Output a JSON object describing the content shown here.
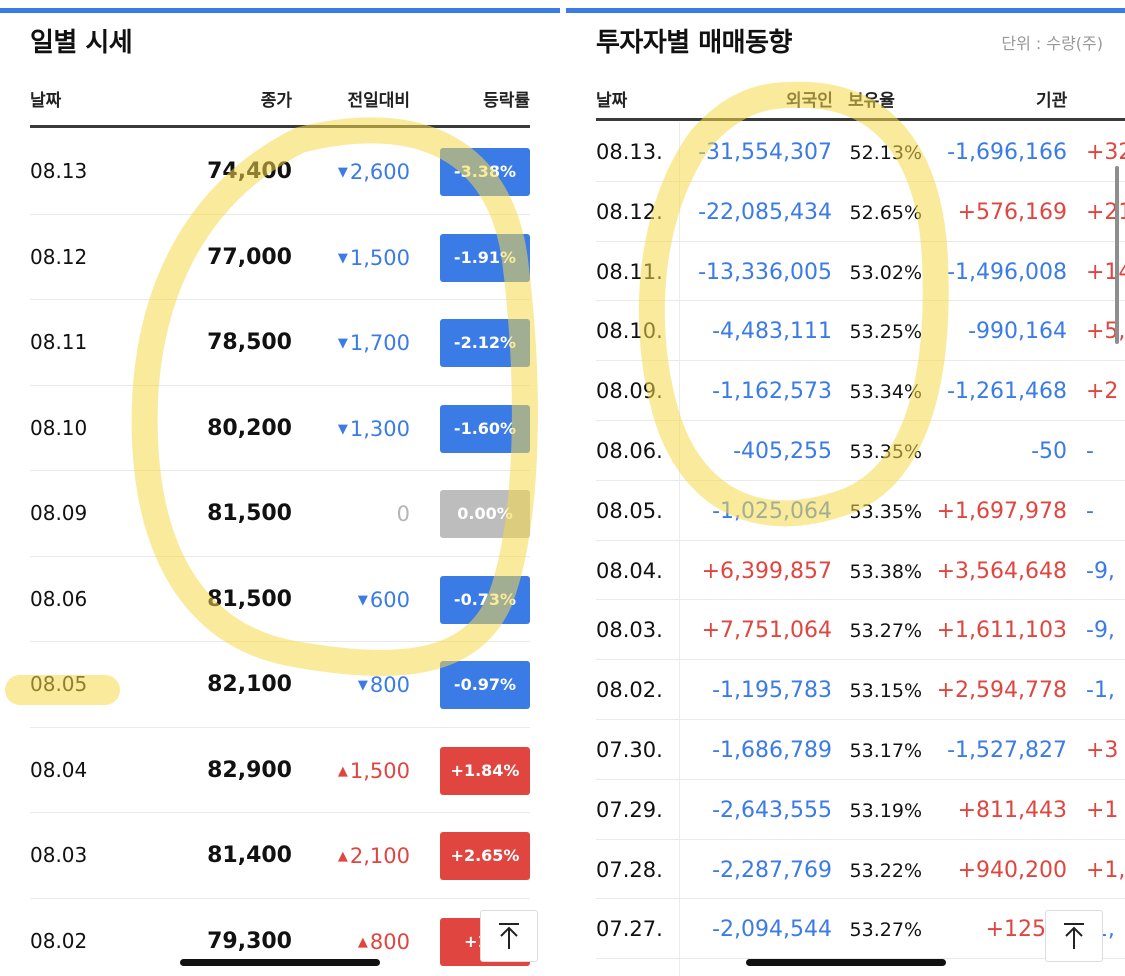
{
  "left": {
    "title": "일별 시세",
    "headers": {
      "date": "날짜",
      "close": "종가",
      "change": "전일대비",
      "rate": "등락률"
    },
    "rows": [
      {
        "date": "08.13",
        "close": "74,400",
        "change": "2,600",
        "dir": "down",
        "rate": "-3.38%"
      },
      {
        "date": "08.12",
        "close": "77,000",
        "change": "1,500",
        "dir": "down",
        "rate": "-1.91%"
      },
      {
        "date": "08.11",
        "close": "78,500",
        "change": "1,700",
        "dir": "down",
        "rate": "-2.12%"
      },
      {
        "date": "08.10",
        "close": "80,200",
        "change": "1,300",
        "dir": "down",
        "rate": "-1.60%"
      },
      {
        "date": "08.09",
        "close": "81,500",
        "change": "0",
        "dir": "flat",
        "rate": "0.00%"
      },
      {
        "date": "08.06",
        "close": "81,500",
        "change": "600",
        "dir": "down",
        "rate": "-0.73%"
      },
      {
        "date": "08.05",
        "close": "82,100",
        "change": "800",
        "dir": "down",
        "rate": "-0.97%"
      },
      {
        "date": "08.04",
        "close": "82,900",
        "change": "1,500",
        "dir": "up",
        "rate": "+1.84%"
      },
      {
        "date": "08.03",
        "close": "81,400",
        "change": "2,100",
        "dir": "up",
        "rate": "+2.65%"
      },
      {
        "date": "08.02",
        "close": "79,300",
        "change": "800",
        "dir": "up",
        "rate": "+1.0"
      }
    ]
  },
  "right": {
    "title": "투자자별 매매동향",
    "unit": "단위 : 수량(주)",
    "headers": {
      "date": "날짜",
      "foreign": "외국인",
      "ratio": "보유율",
      "institution": "기관"
    },
    "rows": [
      {
        "date": "08.13.",
        "foreign": "-31,554,307",
        "fdir": "down",
        "ratio": "52.13%",
        "inst": "-1,696,166",
        "idir": "down",
        "extra": "+32",
        "edir": "up"
      },
      {
        "date": "08.12.",
        "foreign": "-22,085,434",
        "fdir": "down",
        "ratio": "52.65%",
        "inst": "+576,169",
        "idir": "up",
        "extra": "+21,",
        "edir": "up"
      },
      {
        "date": "08.11.",
        "foreign": "-13,336,005",
        "fdir": "down",
        "ratio": "53.02%",
        "inst": "-1,496,008",
        "idir": "down",
        "extra": "+14",
        "edir": "up"
      },
      {
        "date": "08.10.",
        "foreign": "-4,483,111",
        "fdir": "down",
        "ratio": "53.25%",
        "inst": "-990,164",
        "idir": "down",
        "extra": "+5,",
        "edir": "up"
      },
      {
        "date": "08.09.",
        "foreign": "-1,162,573",
        "fdir": "down",
        "ratio": "53.34%",
        "inst": "-1,261,468",
        "idir": "down",
        "extra": "+2",
        "edir": "up"
      },
      {
        "date": "08.06.",
        "foreign": "-405,255",
        "fdir": "down",
        "ratio": "53.35%",
        "inst": "-50",
        "idir": "down",
        "extra": "-",
        "edir": "down"
      },
      {
        "date": "08.05.",
        "foreign": "-1,025,064",
        "fdir": "down",
        "ratio": "53.35%",
        "inst": "+1,697,978",
        "idir": "up",
        "extra": "-",
        "edir": "down"
      },
      {
        "date": "08.04.",
        "foreign": "+6,399,857",
        "fdir": "up",
        "ratio": "53.38%",
        "inst": "+3,564,648",
        "idir": "up",
        "extra": "-9,",
        "edir": "down"
      },
      {
        "date": "08.03.",
        "foreign": "+7,751,064",
        "fdir": "up",
        "ratio": "53.27%",
        "inst": "+1,611,103",
        "idir": "up",
        "extra": "-9,",
        "edir": "down"
      },
      {
        "date": "08.02.",
        "foreign": "-1,195,783",
        "fdir": "down",
        "ratio": "53.15%",
        "inst": "+2,594,778",
        "idir": "up",
        "extra": "-1,",
        "edir": "down"
      },
      {
        "date": "07.30.",
        "foreign": "-1,686,789",
        "fdir": "down",
        "ratio": "53.17%",
        "inst": "-1,527,827",
        "idir": "down",
        "extra": "+3",
        "edir": "up"
      },
      {
        "date": "07.29.",
        "foreign": "-2,643,555",
        "fdir": "down",
        "ratio": "53.19%",
        "inst": "+811,443",
        "idir": "up",
        "extra": "+1",
        "edir": "up"
      },
      {
        "date": "07.28.",
        "foreign": "-2,287,769",
        "fdir": "down",
        "ratio": "53.22%",
        "inst": "+940,200",
        "idir": "up",
        "extra": "+1,",
        "edir": "up"
      },
      {
        "date": "07.27.",
        "foreign": "-2,094,544",
        "fdir": "down",
        "ratio": "53.27%",
        "inst": "+125,5",
        "idir": "up",
        "extra": "-1,",
        "edir": "down"
      }
    ]
  },
  "colors": {
    "accent": "#3b7be6",
    "down": "#3b7be6",
    "up": "#e0463f",
    "flat": "#bdbdbd",
    "highlight": "#f5d94a"
  },
  "icons": {
    "scroll_top": "arrow-to-top-icon",
    "change_down": "triangle-down-icon",
    "change_up": "triangle-up-icon"
  }
}
